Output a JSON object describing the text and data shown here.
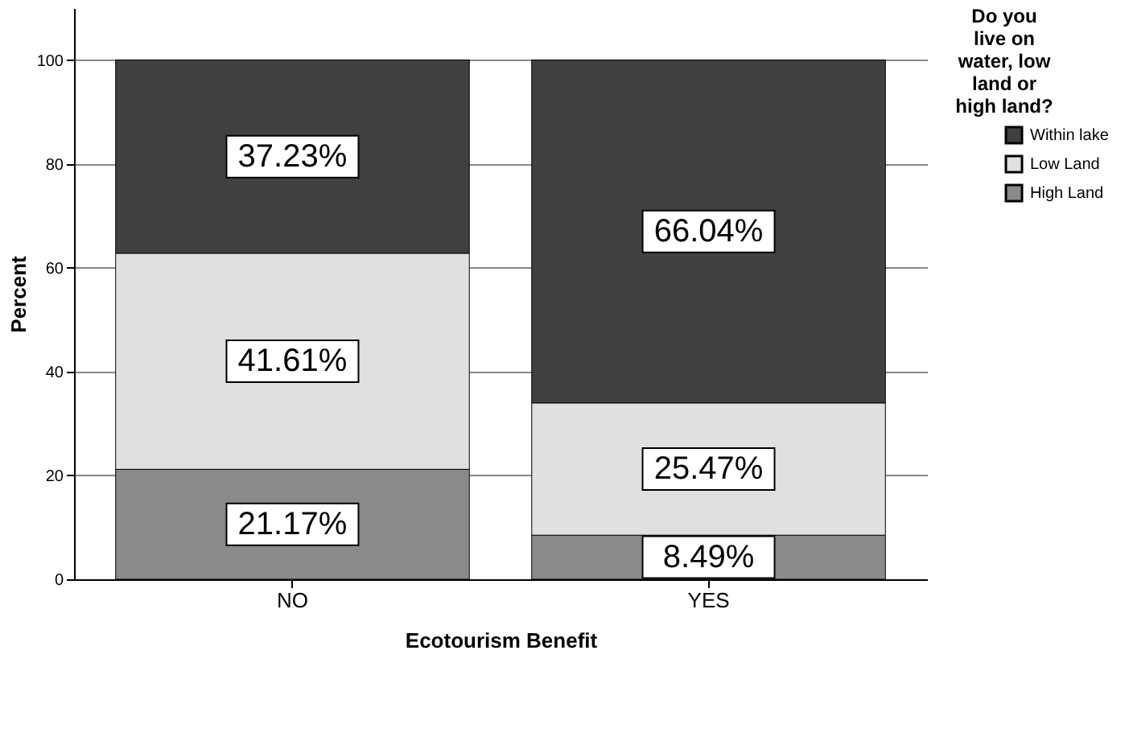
{
  "chart_data": {
    "type": "bar",
    "stacked": true,
    "xlabel": "Ecotourism Benefit",
    "ylabel": "Percent",
    "legend_title": "Do you live on water, low land or high land?",
    "categories": [
      "NO",
      "YES"
    ],
    "series": [
      {
        "name": "High Land",
        "color": "#8a8a8a",
        "values": [
          21.17,
          8.49
        ],
        "value_labels": [
          "21.17%",
          "8.49%"
        ]
      },
      {
        "name": "Low Land",
        "color": "#e0e0e0",
        "values": [
          41.61,
          25.47
        ],
        "value_labels": [
          "41.61%",
          "25.47%"
        ]
      },
      {
        "name": "Within lake",
        "color": "#404040",
        "values": [
          37.23,
          66.04
        ],
        "value_labels": [
          "37.23%",
          "66.04%"
        ]
      }
    ],
    "ylim": [
      0,
      110
    ],
    "yticks": [
      0,
      20,
      40,
      60,
      80,
      100
    ],
    "grid": "y",
    "legend": "right"
  }
}
